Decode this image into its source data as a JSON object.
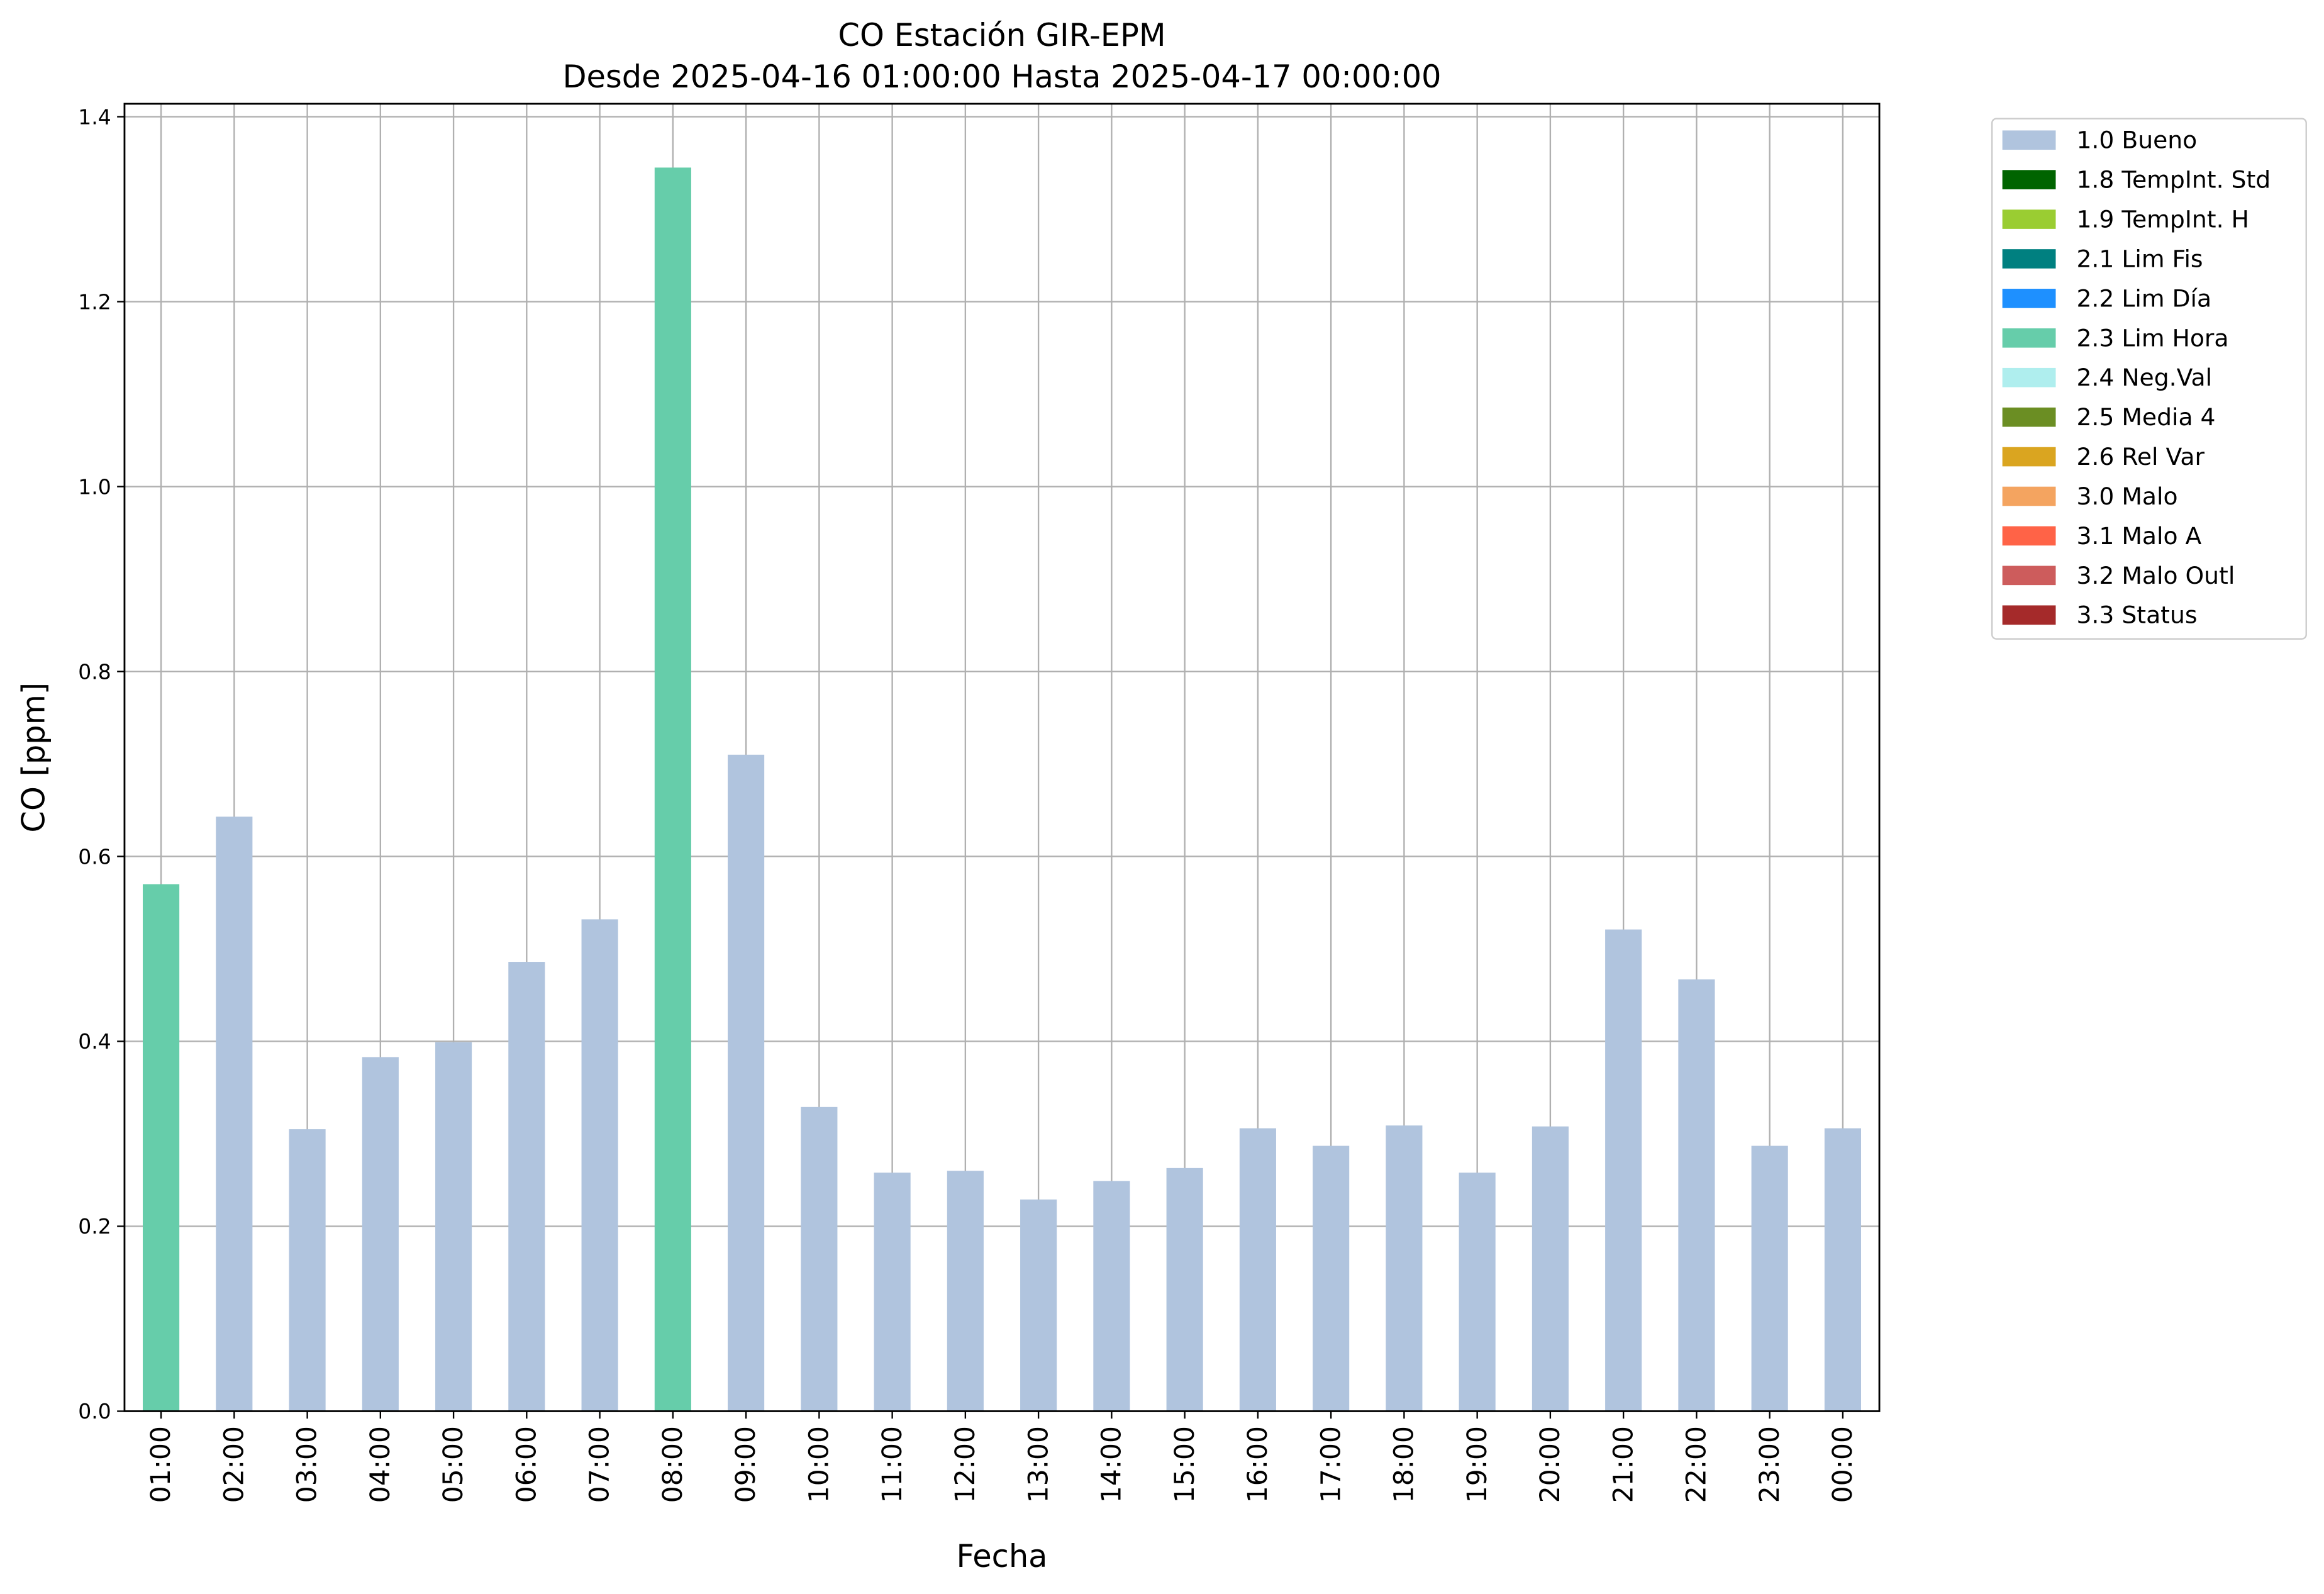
{
  "chart_data": {
    "type": "bar",
    "stacked": true,
    "title": "CO Estación GIR-EPM",
    "subtitle": "Desde 2025-04-16 01:00:00 Hasta 2025-04-17 00:00:00",
    "x_label": "Fecha",
    "y_label": "CO [ppm]",
    "categories": [
      "01:00",
      "02:00",
      "03:00",
      "04:00",
      "05:00",
      "06:00",
      "07:00",
      "08:00",
      "09:00",
      "10:00",
      "11:00",
      "12:00",
      "13:00",
      "14:00",
      "15:00",
      "16:00",
      "17:00",
      "18:00",
      "19:00",
      "20:00",
      "21:00",
      "22:00",
      "23:00",
      "00:00"
    ],
    "ylim": [
      0,
      1.414
    ],
    "yticks": [
      0.0,
      0.2,
      0.4,
      0.6,
      0.8,
      1.0,
      1.2,
      1.4
    ],
    "grid": true,
    "legend": "outside-upper-right",
    "series": [
      {
        "name": "1.0 Bueno",
        "color": "#b0c4de",
        "values": [
          null,
          0.643,
          0.305,
          0.383,
          0.399,
          0.486,
          0.532,
          null,
          0.71,
          0.329,
          0.258,
          0.26,
          0.229,
          0.249,
          0.263,
          0.306,
          0.287,
          0.309,
          0.258,
          0.308,
          0.521,
          0.467,
          0.287,
          0.306
        ]
      },
      {
        "name": "1.8 TempInt. Std",
        "color": "#006400",
        "values": [
          null,
          null,
          null,
          null,
          null,
          null,
          null,
          null,
          null,
          null,
          null,
          null,
          null,
          null,
          null,
          null,
          null,
          null,
          null,
          null,
          null,
          null,
          null,
          null
        ]
      },
      {
        "name": "1.9 TempInt. H",
        "color": "#9acd32",
        "values": [
          null,
          null,
          null,
          null,
          null,
          null,
          null,
          null,
          null,
          null,
          null,
          null,
          null,
          null,
          null,
          null,
          null,
          null,
          null,
          null,
          null,
          null,
          null,
          null
        ]
      },
      {
        "name": "2.1 Lim Fis",
        "color": "#008080",
        "values": [
          null,
          null,
          null,
          null,
          null,
          null,
          null,
          null,
          null,
          null,
          null,
          null,
          null,
          null,
          null,
          null,
          null,
          null,
          null,
          null,
          null,
          null,
          null,
          null
        ]
      },
      {
        "name": "2.2 Lim Día",
        "color": "#1e90ff",
        "values": [
          null,
          null,
          null,
          null,
          null,
          null,
          null,
          null,
          null,
          null,
          null,
          null,
          null,
          null,
          null,
          null,
          null,
          null,
          null,
          null,
          null,
          null,
          null,
          null
        ]
      },
      {
        "name": "2.3 Lim Hora",
        "color": "#66cdaa",
        "values": [
          0.57,
          null,
          null,
          null,
          null,
          null,
          null,
          1.345,
          null,
          null,
          null,
          null,
          null,
          null,
          null,
          null,
          null,
          null,
          null,
          null,
          null,
          null,
          null,
          null
        ]
      },
      {
        "name": "2.4 Neg.Val",
        "color": "#afeeee",
        "values": [
          null,
          null,
          null,
          null,
          null,
          null,
          null,
          null,
          null,
          null,
          null,
          null,
          null,
          null,
          null,
          null,
          null,
          null,
          null,
          null,
          null,
          null,
          null,
          null
        ]
      },
      {
        "name": "2.5 Media 4",
        "color": "#6b8e23",
        "values": [
          null,
          null,
          null,
          null,
          null,
          null,
          null,
          null,
          null,
          null,
          null,
          null,
          null,
          null,
          null,
          null,
          null,
          null,
          null,
          null,
          null,
          null,
          null,
          null
        ]
      },
      {
        "name": "2.6 Rel Var",
        "color": "#daa520",
        "values": [
          null,
          null,
          null,
          null,
          null,
          null,
          null,
          null,
          null,
          null,
          null,
          null,
          null,
          null,
          null,
          null,
          null,
          null,
          null,
          null,
          null,
          null,
          null,
          null
        ]
      },
      {
        "name": "3.0 Malo",
        "color": "#f4a460",
        "values": [
          null,
          null,
          null,
          null,
          null,
          null,
          null,
          null,
          null,
          null,
          null,
          null,
          null,
          null,
          null,
          null,
          null,
          null,
          null,
          null,
          null,
          null,
          null,
          null
        ]
      },
      {
        "name": "3.1 Malo A",
        "color": "#ff6347",
        "values": [
          null,
          null,
          null,
          null,
          null,
          null,
          null,
          null,
          null,
          null,
          null,
          null,
          null,
          null,
          null,
          null,
          null,
          null,
          null,
          null,
          null,
          null,
          null,
          null
        ]
      },
      {
        "name": "3.2 Malo Outl",
        "color": "#cd5c5c",
        "values": [
          null,
          null,
          null,
          null,
          null,
          null,
          null,
          null,
          null,
          null,
          null,
          null,
          null,
          null,
          null,
          null,
          null,
          null,
          null,
          null,
          null,
          null,
          null,
          null
        ]
      },
      {
        "name": "3.3 Status",
        "color": "#a52a2a",
        "values": [
          null,
          null,
          null,
          null,
          null,
          null,
          null,
          null,
          null,
          null,
          null,
          null,
          null,
          null,
          null,
          null,
          null,
          null,
          null,
          null,
          null,
          null,
          null,
          null
        ]
      }
    ]
  }
}
